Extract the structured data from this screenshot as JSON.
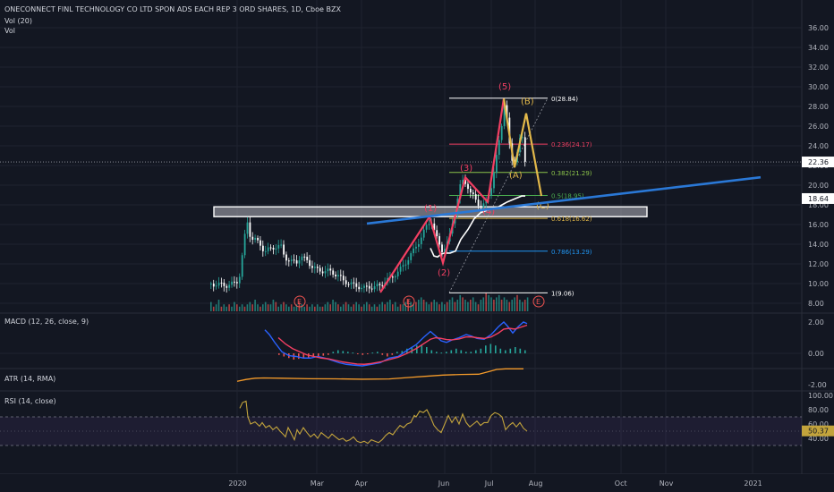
{
  "colors": {
    "background": "#131722",
    "grid": "#1f2330",
    "axis_text": "#b2b5be",
    "candle_up": "#26a69a",
    "candle_down": "#ffffff",
    "wave_red": "#f23f62",
    "wave_yellow": "#e2b84a",
    "trendline_blue": "#2a78d6",
    "macd_line": "#2962ff",
    "signal_line": "#f23f62",
    "atr_line": "#f59b2a",
    "rsi_line": "#c3a43c"
  },
  "header": {
    "title": "ONECONNECT FINL TECHNOLOGY CO LTD SPON ADS EACH REP 3 ORD SHARES, 1D, Cboe BZX",
    "vol": "Vol (20)",
    "vol_short": "Vol"
  },
  "panes": {
    "macd_label": "MACD (12, 26, close, 9)",
    "atr_label": "ATR (14, RMA)",
    "rsi_label": "RSI (14, close)"
  },
  "price_axis": {
    "ticks": [
      "36.00",
      "34.00",
      "32.00",
      "30.00",
      "28.00",
      "26.00",
      "24.00",
      "22.00",
      "20.00",
      "18.00",
      "16.00",
      "14.00",
      "12.00",
      "10.00",
      "8.00"
    ],
    "last_price": "22.36",
    "line_price": "18.64"
  },
  "macd_axis": {
    "ticks": [
      "2.00",
      "0.00",
      "-2.00"
    ]
  },
  "rsi_axis": {
    "ticks": [
      "100.00",
      "80.00",
      "60.00",
      "40.00"
    ],
    "last": "50.37"
  },
  "time_axis": {
    "ticks": [
      "2020",
      "Mar",
      "Apr",
      "Jun",
      "Jul",
      "Aug",
      "Oct",
      "Nov",
      "2021"
    ]
  },
  "waves": [
    "(1)",
    "(2)",
    "(3)",
    "(4)",
    "(5)",
    "(A)",
    "(B)",
    "(C)"
  ],
  "fib_levels": [
    {
      "label": "0(28.84)",
      "price": 28.84,
      "color": "#ffffff"
    },
    {
      "label": "0.236(24.17)",
      "price": 24.17,
      "color": "#f23f62"
    },
    {
      "label": "0.382(21.29)",
      "price": 21.29,
      "color": "#8bc34a"
    },
    {
      "label": "0.5(18.95)",
      "price": 18.95,
      "color": "#4caf50"
    },
    {
      "label": "0.618(16.62)",
      "price": 16.62,
      "color": "#e2b84a"
    },
    {
      "label": "0.786(13.29)",
      "price": 13.29,
      "color": "#2196f3"
    },
    {
      "label": "1(9.06)",
      "price": 9.06,
      "color": "#ffffff"
    }
  ],
  "earnings_marker": "E",
  "chart_data": {
    "type": "candlestick",
    "title": "ONECONNECT FINL TECHNOLOGY CO LTD SPON ADS EACH REP 3 ORD SHARES, 1D, Cboe BZX",
    "ylim": [
      7,
      37
    ],
    "close_path": [
      [
        0,
        10
      ],
      [
        5,
        9.9
      ],
      [
        12,
        9.9
      ],
      [
        18,
        9.8
      ],
      [
        25,
        10
      ],
      [
        30,
        10.3
      ],
      [
        33,
        11.2
      ],
      [
        36,
        13.8
      ],
      [
        38,
        15
      ],
      [
        40,
        16.6
      ],
      [
        42,
        15.4
      ],
      [
        45,
        14.6
      ],
      [
        50,
        14.4
      ],
      [
        55,
        14
      ],
      [
        60,
        13.2
      ],
      [
        65,
        13.5
      ],
      [
        70,
        13.7
      ],
      [
        78,
        13.8
      ],
      [
        82,
        12.8
      ],
      [
        86,
        12.4
      ],
      [
        90,
        12.2
      ],
      [
        96,
        12.2
      ],
      [
        100,
        12.8
      ],
      [
        104,
        12.5
      ],
      [
        108,
        12.3
      ],
      [
        112,
        11.8
      ],
      [
        120,
        11.3
      ],
      [
        130,
        11.3
      ],
      [
        136,
        11.1
      ],
      [
        142,
        10.8
      ],
      [
        148,
        10.3
      ],
      [
        155,
        10
      ],
      [
        160,
        9.8
      ],
      [
        165,
        9.7
      ],
      [
        170,
        9.5
      ],
      [
        176,
        9.7
      ],
      [
        182,
        9.6
      ],
      [
        188,
        9.8
      ],
      [
        194,
        10.2
      ],
      [
        200,
        10.5
      ],
      [
        205,
        10.9
      ],
      [
        210,
        11.3
      ],
      [
        214,
        11.7
      ],
      [
        218,
        12.2
      ],
      [
        222,
        12.8
      ],
      [
        226,
        13.3
      ],
      [
        230,
        13.9
      ],
      [
        234,
        14.6
      ],
      [
        238,
        15.3
      ],
      [
        242,
        16
      ],
      [
        246,
        16.5
      ],
      [
        250,
        15.2
      ],
      [
        254,
        14.1
      ],
      [
        258,
        13.4
      ],
      [
        262,
        13.8
      ],
      [
        266,
        14.5
      ],
      [
        270,
        16.3
      ],
      [
        274,
        18
      ],
      [
        278,
        19.8
      ],
      [
        282,
        20.5
      ],
      [
        286,
        20.1
      ],
      [
        290,
        19.2
      ],
      [
        294,
        18.7
      ],
      [
        298,
        18.2
      ],
      [
        302,
        17.8
      ],
      [
        306,
        18.1
      ],
      [
        310,
        18.9
      ],
      [
        314,
        20.2
      ],
      [
        318,
        22.3
      ],
      [
        322,
        24.5
      ],
      [
        326,
        26.9
      ],
      [
        328,
        28.6
      ],
      [
        331,
        26.5
      ],
      [
        334,
        23.5
      ],
      [
        337,
        22.2
      ],
      [
        340,
        22.7
      ],
      [
        343,
        23.8
      ],
      [
        346,
        25
      ],
      [
        349,
        24.5
      ],
      [
        351,
        22.36
      ]
    ],
    "ma_path": [
      [
        246,
        13.6
      ],
      [
        250,
        12.8
      ],
      [
        254,
        12.7
      ],
      [
        258,
        13
      ],
      [
        262,
        13.1
      ],
      [
        268,
        13.1
      ],
      [
        274,
        13.3
      ],
      [
        280,
        14.5
      ],
      [
        288,
        15.5
      ],
      [
        295,
        16.6
      ],
      [
        302,
        17.2
      ],
      [
        308,
        17.4
      ],
      [
        314,
        17.6
      ],
      [
        320,
        17.7
      ],
      [
        326,
        18
      ],
      [
        332,
        18.3
      ],
      [
        340,
        18.6
      ],
      [
        348,
        18.9
      ],
      [
        352,
        18.9
      ]
    ],
    "volume": [
      4,
      2,
      3,
      5,
      2,
      3,
      2,
      3,
      2,
      4,
      3,
      2,
      3,
      2,
      3,
      4,
      3,
      5,
      3,
      2,
      3,
      4,
      3,
      3,
      5,
      4,
      2,
      3,
      4,
      3,
      2,
      3,
      2,
      3,
      4,
      3,
      2,
      3,
      2,
      3,
      2,
      3,
      2,
      2,
      3,
      4,
      3,
      5,
      4,
      3,
      2,
      3,
      4,
      3,
      2,
      3,
      4,
      3,
      2,
      3,
      4,
      3,
      2,
      3,
      2,
      3,
      4,
      3,
      4,
      5,
      3,
      4,
      2,
      3,
      3,
      4,
      5,
      4,
      3,
      4,
      5,
      6,
      5,
      4,
      3,
      4,
      5,
      4,
      3,
      4,
      3,
      4,
      5,
      6,
      4,
      5,
      7,
      6,
      5,
      4,
      5,
      6,
      4,
      3,
      5,
      6,
      8,
      7,
      6,
      5,
      6,
      7,
      5,
      6,
      5,
      4,
      5,
      6,
      7,
      5,
      4,
      5,
      6
    ],
    "elliott_wave": [
      [
        190,
        9.1
      ],
      [
        245,
        16.8
      ],
      [
        260,
        12.1
      ],
      [
        285,
        20.8
      ],
      [
        310,
        18.3
      ],
      [
        328,
        28.8
      ],
      [
        340,
        21.8
      ],
      [
        353,
        27.3
      ],
      [
        370,
        18.9
      ]
    ],
    "trendline": [
      [
        175,
        16.1
      ],
      [
        615,
        20.8
      ]
    ],
    "zone": {
      "x0": 8,
      "x1": 488,
      "y0": 16.8,
      "y1": 17.8
    },
    "macd": [
      [
        61,
        1.5
      ],
      [
        66,
        1.2
      ],
      [
        72,
        0.7
      ],
      [
        80,
        0.1
      ],
      [
        88,
        -0.15
      ],
      [
        96,
        -0.2
      ],
      [
        104,
        -0.3
      ],
      [
        112,
        -0.3
      ],
      [
        120,
        -0.2
      ],
      [
        128,
        -0.3
      ],
      [
        136,
        -0.45
      ],
      [
        144,
        -0.6
      ],
      [
        152,
        -0.7
      ],
      [
        160,
        -0.75
      ],
      [
        170,
        -0.8
      ],
      [
        180,
        -0.7
      ],
      [
        190,
        -0.6
      ],
      [
        200,
        -0.3
      ],
      [
        210,
        -0.2
      ],
      [
        220,
        0.2
      ],
      [
        230,
        0.55
      ],
      [
        238,
        1.0
      ],
      [
        246,
        1.4
      ],
      [
        252,
        1.1
      ],
      [
        258,
        0.8
      ],
      [
        264,
        0.7
      ],
      [
        270,
        0.85
      ],
      [
        278,
        1.0
      ],
      [
        286,
        1.2
      ],
      [
        292,
        1.1
      ],
      [
        298,
        0.95
      ],
      [
        306,
        0.9
      ],
      [
        314,
        1.2
      ],
      [
        322,
        1.7
      ],
      [
        328,
        2.0
      ],
      [
        332,
        1.75
      ],
      [
        338,
        1.3
      ],
      [
        344,
        1.7
      ],
      [
        350,
        2.0
      ],
      [
        354,
        1.9
      ]
    ],
    "signal": [
      [
        76,
        1.0
      ],
      [
        84,
        0.6
      ],
      [
        92,
        0.3
      ],
      [
        100,
        0.1
      ],
      [
        108,
        -0.1
      ],
      [
        116,
        -0.2
      ],
      [
        124,
        -0.3
      ],
      [
        132,
        -0.35
      ],
      [
        140,
        -0.45
      ],
      [
        148,
        -0.55
      ],
      [
        156,
        -0.62
      ],
      [
        164,
        -0.68
      ],
      [
        172,
        -0.7
      ],
      [
        180,
        -0.65
      ],
      [
        190,
        -0.55
      ],
      [
        200,
        -0.4
      ],
      [
        210,
        -0.25
      ],
      [
        220,
        0
      ],
      [
        230,
        0.3
      ],
      [
        238,
        0.6
      ],
      [
        246,
        0.9
      ],
      [
        252,
        1.0
      ],
      [
        258,
        0.95
      ],
      [
        264,
        0.88
      ],
      [
        270,
        0.86
      ],
      [
        278,
        0.92
      ],
      [
        286,
        1.05
      ],
      [
        292,
        1.05
      ],
      [
        298,
        1.0
      ],
      [
        306,
        0.95
      ],
      [
        314,
        1.05
      ],
      [
        322,
        1.3
      ],
      [
        328,
        1.55
      ],
      [
        334,
        1.6
      ],
      [
        340,
        1.55
      ],
      [
        346,
        1.65
      ],
      [
        354,
        1.8
      ]
    ],
    "macd_hist": [
      -0.1,
      -0.2,
      -0.3,
      -0.4,
      -0.35,
      -0.3,
      -0.3,
      -0.25,
      -0.2,
      -0.15,
      -0.1,
      0.1,
      0.2,
      0.15,
      0.1,
      0.05,
      -0.05,
      -0.1,
      -0.05,
      0.05,
      0.1,
      -0.1,
      -0.2,
      -0.1,
      0.1,
      0.15,
      0.3,
      0.4,
      0.5,
      0.5,
      0.4,
      0.2,
      0.1,
      0.05,
      0.1,
      0.2,
      0.3,
      0.2,
      0.1,
      0.1,
      0.2,
      0.3,
      0.5,
      0.6,
      0.5,
      0.3,
      0.2,
      0.3,
      0.4,
      0.3,
      0.2
    ],
    "atr": [
      [
        30,
        0.55
      ],
      [
        40,
        0.7
      ],
      [
        50,
        0.8
      ],
      [
        60,
        0.82
      ],
      [
        80,
        0.8
      ],
      [
        110,
        0.76
      ],
      [
        140,
        0.75
      ],
      [
        170,
        0.72
      ],
      [
        200,
        0.74
      ],
      [
        220,
        0.85
      ],
      [
        240,
        0.95
      ],
      [
        260,
        1.05
      ],
      [
        280,
        1.1
      ],
      [
        300,
        1.12
      ],
      [
        310,
        1.3
      ],
      [
        320,
        1.5
      ],
      [
        330,
        1.55
      ],
      [
        350,
        1.55
      ]
    ],
    "rsi": [
      [
        33,
        82
      ],
      [
        36,
        90
      ],
      [
        40,
        92
      ],
      [
        42,
        70
      ],
      [
        45,
        60
      ],
      [
        50,
        63
      ],
      [
        55,
        57
      ],
      [
        58,
        62
      ],
      [
        62,
        55
      ],
      [
        66,
        58
      ],
      [
        70,
        52
      ],
      [
        74,
        56
      ],
      [
        78,
        50
      ],
      [
        82,
        45
      ],
      [
        84,
        42
      ],
      [
        87,
        55
      ],
      [
        90,
        48
      ],
      [
        94,
        38
      ],
      [
        97,
        52
      ],
      [
        100,
        46
      ],
      [
        104,
        55
      ],
      [
        108,
        48
      ],
      [
        112,
        42
      ],
      [
        116,
        46
      ],
      [
        120,
        40
      ],
      [
        124,
        48
      ],
      [
        128,
        44
      ],
      [
        132,
        40
      ],
      [
        136,
        46
      ],
      [
        140,
        42
      ],
      [
        144,
        38
      ],
      [
        148,
        40
      ],
      [
        152,
        36
      ],
      [
        156,
        38
      ],
      [
        160,
        42
      ],
      [
        164,
        36
      ],
      [
        168,
        34
      ],
      [
        172,
        36
      ],
      [
        176,
        33
      ],
      [
        180,
        38
      ],
      [
        184,
        36
      ],
      [
        188,
        34
      ],
      [
        192,
        38
      ],
      [
        196,
        44
      ],
      [
        200,
        48
      ],
      [
        204,
        45
      ],
      [
        208,
        52
      ],
      [
        212,
        58
      ],
      [
        216,
        55
      ],
      [
        220,
        60
      ],
      [
        224,
        62
      ],
      [
        228,
        72
      ],
      [
        230,
        70
      ],
      [
        234,
        78
      ],
      [
        238,
        76
      ],
      [
        242,
        80
      ],
      [
        246,
        70
      ],
      [
        250,
        58
      ],
      [
        254,
        52
      ],
      [
        258,
        48
      ],
      [
        262,
        60
      ],
      [
        266,
        72
      ],
      [
        270,
        62
      ],
      [
        274,
        70
      ],
      [
        278,
        60
      ],
      [
        282,
        74
      ],
      [
        286,
        62
      ],
      [
        290,
        56
      ],
      [
        294,
        60
      ],
      [
        298,
        64
      ],
      [
        302,
        58
      ],
      [
        306,
        62
      ],
      [
        310,
        62
      ],
      [
        314,
        72
      ],
      [
        318,
        76
      ],
      [
        322,
        74
      ],
      [
        326,
        70
      ],
      [
        330,
        52
      ],
      [
        334,
        58
      ],
      [
        338,
        62
      ],
      [
        342,
        56
      ],
      [
        346,
        62
      ],
      [
        350,
        54
      ],
      [
        354,
        50
      ]
    ]
  }
}
